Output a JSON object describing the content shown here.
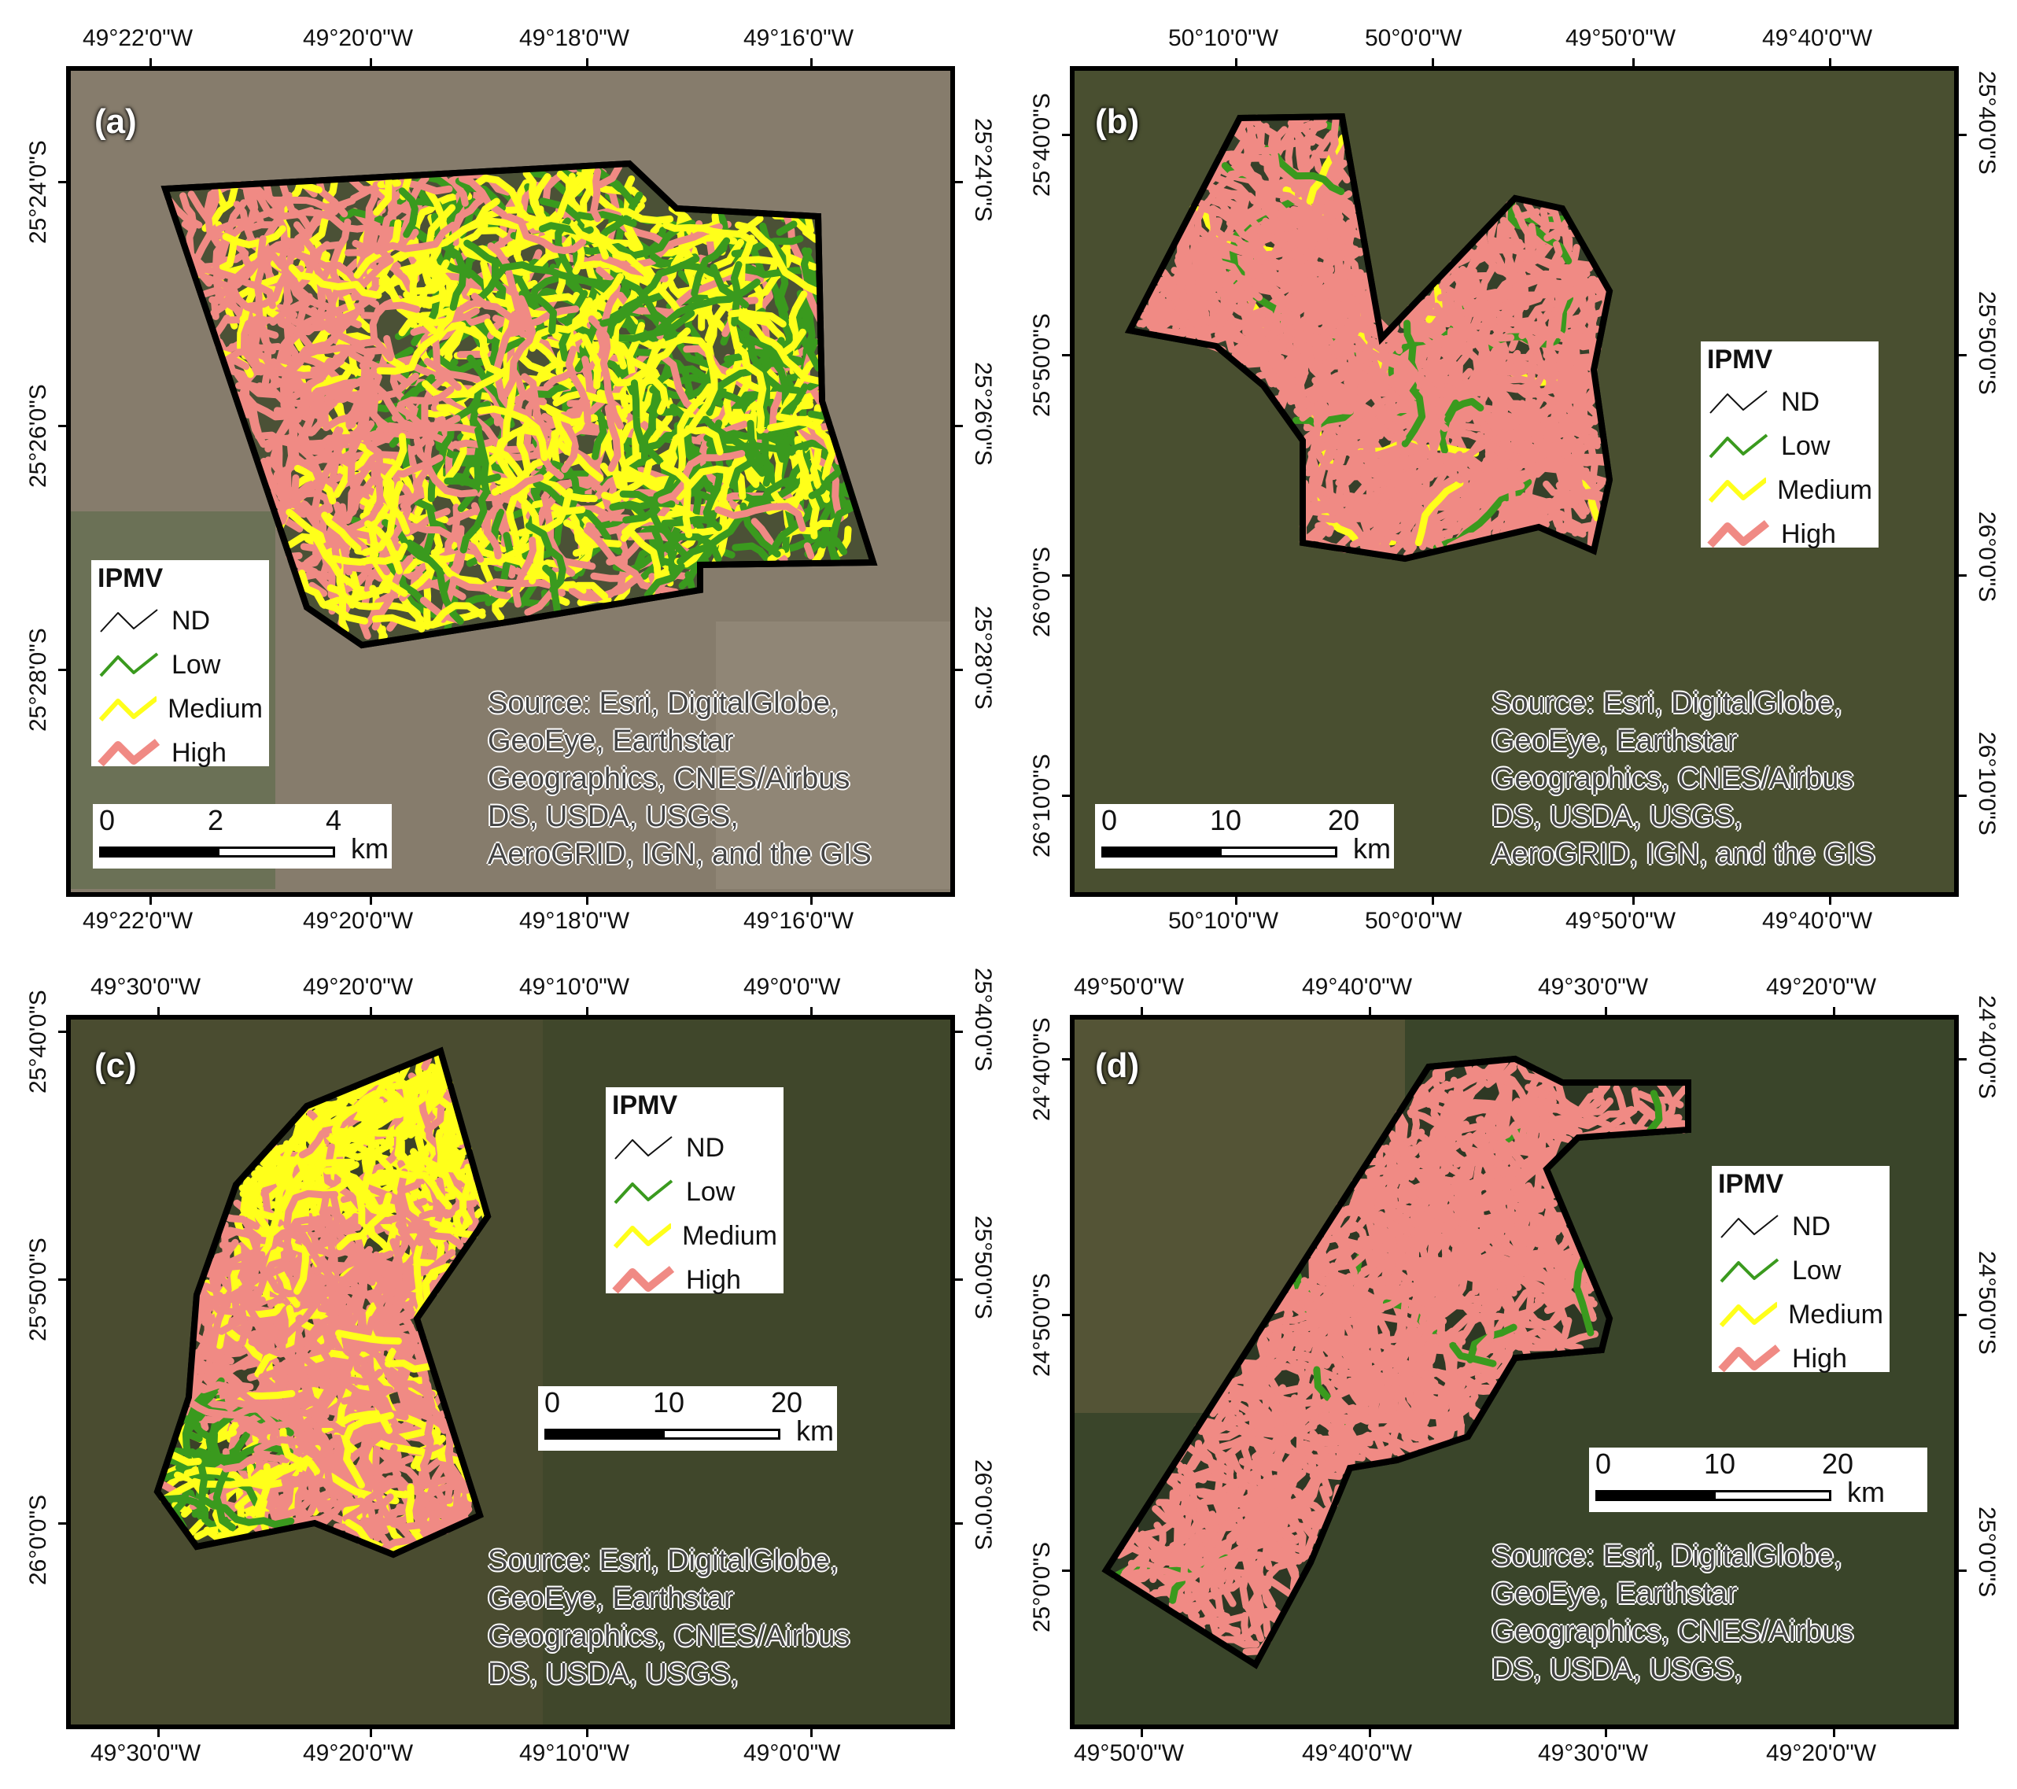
{
  "legend": {
    "title": "IPMV",
    "items": [
      {
        "label": "ND",
        "color": "#111111"
      },
      {
        "label": "Low",
        "color": "#3a9a1e"
      },
      {
        "label": "Medium",
        "color": "#ffff1a"
      },
      {
        "label": "High",
        "color": "#f08a84"
      }
    ]
  },
  "colors": {
    "basemap_urban": "#8a8070",
    "basemap_forest": "#3c4a2a",
    "boundary": "#000000"
  },
  "panels": [
    {
      "tag": "(a)",
      "top_ticks": [
        "49°22'0\"W",
        "49°20'0\"W",
        "49°18'0\"W",
        "49°16'0\"W"
      ],
      "bottom_ticks": [
        "49°22'0\"W",
        "49°20'0\"W",
        "49°18'0\"W",
        "49°16'0\"W"
      ],
      "left_ticks": [
        "25°24'0\"S",
        "25°26'0\"S",
        "25°28'0\"S"
      ],
      "right_ticks": [
        "25°24'0\"S",
        "25°26'0\"S",
        "25°28'0\"S"
      ],
      "scale": {
        "labels": [
          "0",
          "2",
          "4"
        ],
        "unit": "km"
      },
      "source": "Source: Esri, DigitalGlobe,\nGeoEye, Earthstar\nGeographics, CNES/Airbus\nDS, USDA, USGS,\nAeroGRID, IGN, and the GIS"
    },
    {
      "tag": "(b)",
      "top_ticks": [
        "50°10'0\"W",
        "50°0'0\"W",
        "49°50'0\"W",
        "49°40'0\"W"
      ],
      "bottom_ticks": [
        "50°10'0\"W",
        "50°0'0\"W",
        "49°50'0\"W",
        "49°40'0\"W"
      ],
      "left_ticks": [
        "25°40'0\"S",
        "25°50'0\"S",
        "26°0'0\"S",
        "26°10'0\"S"
      ],
      "right_ticks": [
        "25°40'0\"S",
        "25°50'0\"S",
        "26°0'0\"S",
        "26°10'0\"S"
      ],
      "scale": {
        "labels": [
          "0",
          "10",
          "20"
        ],
        "unit": "km"
      },
      "source": "Source: Esri, DigitalGlobe,\nGeoEye, Earthstar\nGeographics, CNES/Airbus\nDS, USDA, USGS,\nAeroGRID, IGN, and the GIS"
    },
    {
      "tag": "(c)",
      "top_ticks": [
        "49°30'0\"W",
        "49°20'0\"W",
        "49°10'0\"W",
        "49°0'0\"W"
      ],
      "bottom_ticks": [
        "49°30'0\"W",
        "49°20'0\"W",
        "49°10'0\"W",
        "49°0'0\"W"
      ],
      "left_ticks": [
        "25°40'0\"S",
        "25°50'0\"S",
        "26°0'0\"S"
      ],
      "right_ticks": [
        "25°40'0\"S",
        "25°50'0\"S",
        "26°0'0\"S"
      ],
      "scale": {
        "labels": [
          "0",
          "10",
          "20"
        ],
        "unit": "km"
      },
      "source": "Source: Esri, DigitalGlobe,\nGeoEye, Earthstar\nGeographics, CNES/Airbus\nDS, USDA, USGS,"
    },
    {
      "tag": "(d)",
      "top_ticks": [
        "49°50'0\"W",
        "49°40'0\"W",
        "49°30'0\"W",
        "49°20'0\"W"
      ],
      "bottom_ticks": [
        "49°50'0\"W",
        "49°40'0\"W",
        "49°30'0\"W",
        "49°20'0\"W"
      ],
      "left_ticks": [
        "24°40'0\"S",
        "24°50'0\"S",
        "25°0'0\"S"
      ],
      "right_ticks": [
        "24°40'0\"S",
        "24°50'0\"S",
        "25°0'0\"S"
      ],
      "scale": {
        "labels": [
          "0",
          "10",
          "20"
        ],
        "unit": "km"
      },
      "source": "Source: Esri, DigitalGlobe,\nGeoEye, Earthstar\nGeographics, CNES/Airbus\nDS, USDA, USGS,"
    }
  ]
}
